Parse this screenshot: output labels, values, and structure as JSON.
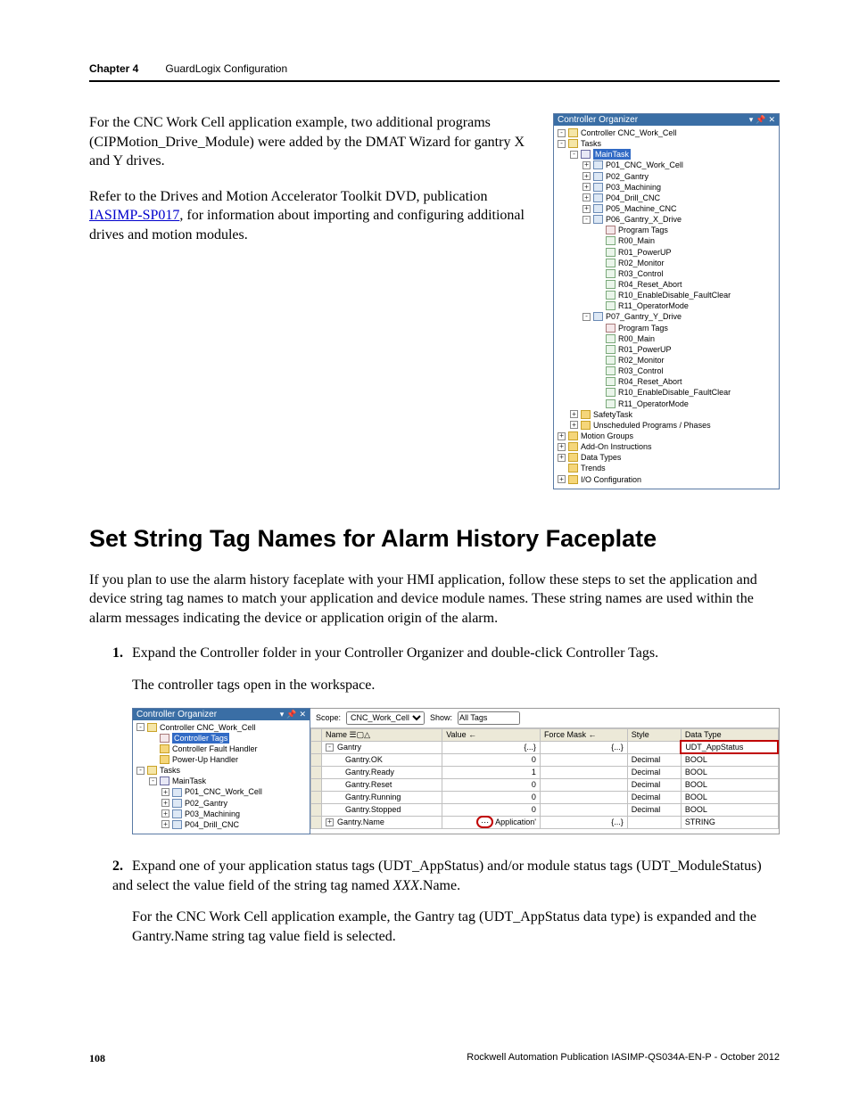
{
  "header": {
    "chapter": "Chapter 4",
    "title": "GuardLogix Configuration"
  },
  "intro": {
    "para1": "For the CNC Work Cell application example, two additional programs (CIPMotion_Drive_Module) were added by the DMAT Wizard for gantry X and Y drives.",
    "para2a": "Refer to the Drives and Motion Accelerator Toolkit DVD, publication ",
    "link": "IASIMP-SP017",
    "para2b": ", for information about importing and configuring additional drives and motion modules."
  },
  "organizer1": {
    "title": "Controller Organizer",
    "tree": [
      {
        "lvl": 0,
        "exp": "-",
        "icon": "ic-folder-open",
        "label": "Controller CNC_Work_Cell"
      },
      {
        "lvl": 0,
        "exp": "-",
        "icon": "ic-folder-open",
        "label": "Tasks"
      },
      {
        "lvl": 1,
        "exp": "-",
        "icon": "ic-task",
        "label": "MainTask",
        "sel": true
      },
      {
        "lvl": 2,
        "exp": "+",
        "icon": "ic-prog",
        "label": "P01_CNC_Work_Cell"
      },
      {
        "lvl": 2,
        "exp": "+",
        "icon": "ic-prog",
        "label": "P02_Gantry"
      },
      {
        "lvl": 2,
        "exp": "+",
        "icon": "ic-prog",
        "label": "P03_Machining"
      },
      {
        "lvl": 2,
        "exp": "+",
        "icon": "ic-prog",
        "label": "P04_Drill_CNC"
      },
      {
        "lvl": 2,
        "exp": "+",
        "icon": "ic-prog",
        "label": "P05_Machine_CNC"
      },
      {
        "lvl": 2,
        "exp": "-",
        "icon": "ic-prog",
        "label": "P06_Gantry_X_Drive"
      },
      {
        "lvl": 3,
        "exp": "",
        "icon": "ic-tag",
        "label": "Program Tags"
      },
      {
        "lvl": 3,
        "exp": "",
        "icon": "ic-routine",
        "label": "R00_Main"
      },
      {
        "lvl": 3,
        "exp": "",
        "icon": "ic-routine",
        "label": "R01_PowerUP"
      },
      {
        "lvl": 3,
        "exp": "",
        "icon": "ic-routine",
        "label": "R02_Monitor"
      },
      {
        "lvl": 3,
        "exp": "",
        "icon": "ic-routine",
        "label": "R03_Control"
      },
      {
        "lvl": 3,
        "exp": "",
        "icon": "ic-routine",
        "label": "R04_Reset_Abort"
      },
      {
        "lvl": 3,
        "exp": "",
        "icon": "ic-routine",
        "label": "R10_EnableDisable_FaultClear"
      },
      {
        "lvl": 3,
        "exp": "",
        "icon": "ic-routine",
        "label": "R11_OperatorMode"
      },
      {
        "lvl": 2,
        "exp": "-",
        "icon": "ic-prog",
        "label": "P07_Gantry_Y_Drive"
      },
      {
        "lvl": 3,
        "exp": "",
        "icon": "ic-tag",
        "label": "Program Tags"
      },
      {
        "lvl": 3,
        "exp": "",
        "icon": "ic-routine",
        "label": "R00_Main"
      },
      {
        "lvl": 3,
        "exp": "",
        "icon": "ic-routine",
        "label": "R01_PowerUP"
      },
      {
        "lvl": 3,
        "exp": "",
        "icon": "ic-routine",
        "label": "R02_Monitor"
      },
      {
        "lvl": 3,
        "exp": "",
        "icon": "ic-routine",
        "label": "R03_Control"
      },
      {
        "lvl": 3,
        "exp": "",
        "icon": "ic-routine",
        "label": "R04_Reset_Abort"
      },
      {
        "lvl": 3,
        "exp": "",
        "icon": "ic-routine",
        "label": "R10_EnableDisable_FaultClear"
      },
      {
        "lvl": 3,
        "exp": "",
        "icon": "ic-routine",
        "label": "R11_OperatorMode"
      },
      {
        "lvl": 1,
        "exp": "+",
        "icon": "ic-folder",
        "label": "SafetyTask"
      },
      {
        "lvl": 1,
        "exp": "+",
        "icon": "ic-folder",
        "label": "Unscheduled Programs / Phases"
      },
      {
        "lvl": 0,
        "exp": "+",
        "icon": "ic-folder",
        "label": "Motion Groups"
      },
      {
        "lvl": 0,
        "exp": "+",
        "icon": "ic-folder",
        "label": "Add-On Instructions"
      },
      {
        "lvl": 0,
        "exp": "+",
        "icon": "ic-folder",
        "label": "Data Types"
      },
      {
        "lvl": 0,
        "exp": "",
        "icon": "ic-folder",
        "label": "Trends"
      },
      {
        "lvl": 0,
        "exp": "+",
        "icon": "ic-folder",
        "label": "I/O Configuration"
      }
    ]
  },
  "section_heading": "Set String Tag Names for Alarm History Faceplate",
  "section_intro": "If you plan to use the alarm history faceplate with your HMI application, follow these steps to set the application and device string tag names to match your application and device module names. These string names are used within the alarm messages indicating the device or application origin of the alarm.",
  "step1": {
    "num": "1.",
    "text": "Expand the Controller folder in your Controller Organizer and double-click Controller Tags.",
    "sub": "The controller tags open in the workspace."
  },
  "organizer2": {
    "title": "Controller Organizer",
    "tree": [
      {
        "lvl": 0,
        "exp": "-",
        "icon": "ic-folder-open",
        "label": "Controller CNC_Work_Cell"
      },
      {
        "lvl": 1,
        "exp": "",
        "icon": "ic-tag",
        "label": "Controller Tags",
        "sel": true
      },
      {
        "lvl": 1,
        "exp": "",
        "icon": "ic-folder",
        "label": "Controller Fault Handler"
      },
      {
        "lvl": 1,
        "exp": "",
        "icon": "ic-folder",
        "label": "Power-Up Handler"
      },
      {
        "lvl": 0,
        "exp": "-",
        "icon": "ic-folder-open",
        "label": "Tasks"
      },
      {
        "lvl": 1,
        "exp": "-",
        "icon": "ic-task",
        "label": "MainTask"
      },
      {
        "lvl": 2,
        "exp": "+",
        "icon": "ic-prog",
        "label": "P01_CNC_Work_Cell"
      },
      {
        "lvl": 2,
        "exp": "+",
        "icon": "ic-prog",
        "label": "P02_Gantry"
      },
      {
        "lvl": 2,
        "exp": "+",
        "icon": "ic-prog",
        "label": "P03_Machining"
      },
      {
        "lvl": 2,
        "exp": "+",
        "icon": "ic-prog",
        "label": "P04_Drill_CNC"
      }
    ]
  },
  "taggrid": {
    "scope_label": "Scope:",
    "scope_value": "CNC_Work_Cell",
    "show_label": "Show:",
    "show_value": "All Tags",
    "cols": [
      "Name",
      "Value",
      "Force Mask",
      "Style",
      "Data Type"
    ],
    "sort_col_indicator_a": "☰▢△",
    "sort_col_indicator_b": "←",
    "rows": [
      {
        "name": "Gantry",
        "exp": "-",
        "value": "{...}",
        "force": "{...}",
        "style": "",
        "dtype": "UDT_AppStatus",
        "dcirc": true
      },
      {
        "name": "Gantry.OK",
        "exp": "",
        "value": "0",
        "force": "",
        "style": "Decimal",
        "dtype": "BOOL"
      },
      {
        "name": "Gantry.Ready",
        "exp": "",
        "value": "1",
        "force": "",
        "style": "Decimal",
        "dtype": "BOOL"
      },
      {
        "name": "Gantry.Reset",
        "exp": "",
        "value": "0",
        "force": "",
        "style": "Decimal",
        "dtype": "BOOL"
      },
      {
        "name": "Gantry.Running",
        "exp": "",
        "value": "0",
        "force": "",
        "style": "Decimal",
        "dtype": "BOOL"
      },
      {
        "name": "Gantry.Stopped",
        "exp": "",
        "value": "0",
        "force": "",
        "style": "Decimal",
        "dtype": "BOOL"
      },
      {
        "name": "Gantry.Name",
        "exp": "+",
        "value": "Application'",
        "vcirc": true,
        "force": "{...}",
        "style": "",
        "dtype": "STRING"
      }
    ]
  },
  "step2": {
    "num": "2.",
    "text_a": "Expand one of your application status tags (UDT_AppStatus) and/or module status tags (UDT_ModuleStatus) and select the value field of the string tag named ",
    "italic": "XXX",
    "text_b": ".Name.",
    "sub": "For the CNC Work Cell application example, the Gantry tag (UDT_AppStatus data type) is expanded and the Gantry.Name string tag value field is selected."
  },
  "footer": {
    "page": "108",
    "pub": "Rockwell Automation Publication IASIMP-QS034A-EN-P - October 2012"
  }
}
